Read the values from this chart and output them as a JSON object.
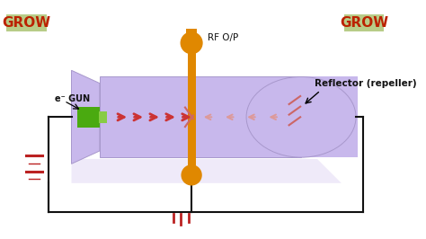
{
  "bg": "#ffffff",
  "grow_bg": "#b8cc88",
  "grow_fg": "#bb2200",
  "tube_fill": "#c8b8ec",
  "tube_edge": "#a898cc",
  "tube_shadow": "#d0c4f0",
  "orange": "#e08800",
  "green_body": "#4aaa10",
  "green_barrel": "#88cc44",
  "arrow_fwd": "#cc3333",
  "arrow_back": "#dd9999",
  "wire": "#111111",
  "batt": "#bb2222",
  "text_dark": "#111111",
  "refl_line": "#cc6666",
  "shadow_fill": "#d8ccf0",
  "cavity_lines": "#cc6666",
  "grow_text": "GROW",
  "egun_label": "e⁻ GUN",
  "rf_label": "RF O/P",
  "refl_label": "Reflector (repeller)"
}
